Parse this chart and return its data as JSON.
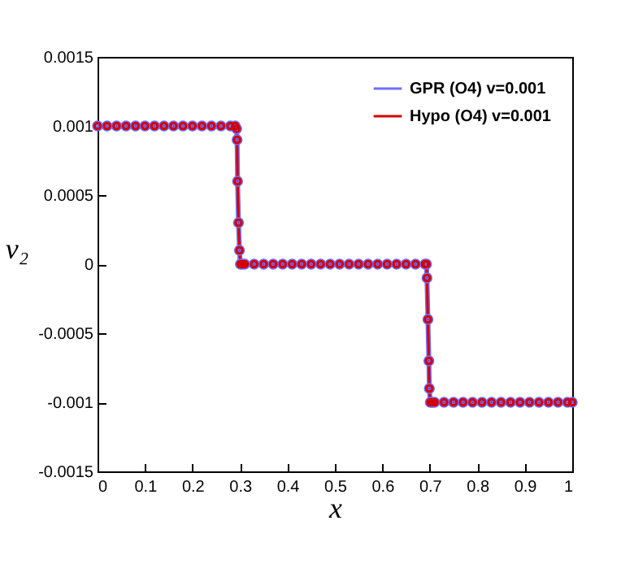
{
  "chart_data": {
    "type": "line",
    "xlabel": "x",
    "ylabel": "v₂",
    "x": [
      0,
      0.02,
      0.04,
      0.06,
      0.08,
      0.1,
      0.12,
      0.14,
      0.16,
      0.18,
      0.2,
      0.22,
      0.24,
      0.26,
      0.28,
      0.29,
      0.293,
      0.294,
      0.295,
      0.297,
      0.299,
      0.301,
      0.305,
      0.31,
      0.33,
      0.35,
      0.37,
      0.39,
      0.41,
      0.43,
      0.45,
      0.47,
      0.49,
      0.51,
      0.53,
      0.55,
      0.57,
      0.59,
      0.61,
      0.63,
      0.65,
      0.67,
      0.69,
      0.693,
      0.694,
      0.696,
      0.698,
      0.699,
      0.701,
      0.705,
      0.71,
      0.73,
      0.75,
      0.77,
      0.79,
      0.81,
      0.83,
      0.85,
      0.87,
      0.89,
      0.91,
      0.93,
      0.95,
      0.97,
      0.99,
      1
    ],
    "series": [
      {
        "name": "GPR (O4)   v=0.001",
        "color": "#6e6eff",
        "values": [
          0.001,
          0.001,
          0.001,
          0.001,
          0.001,
          0.001,
          0.001,
          0.001,
          0.001,
          0.001,
          0.001,
          0.001,
          0.001,
          0.001,
          0.001,
          0.001,
          0.00098,
          0.0009,
          0.0006,
          0.0003,
          0.0001,
          0,
          0,
          0,
          0,
          0,
          0,
          0,
          0,
          0,
          0,
          0,
          0,
          0,
          0,
          0,
          0,
          0,
          0,
          0,
          0,
          0,
          0,
          0,
          -0.0001,
          -0.0004,
          -0.0007,
          -0.0009,
          -0.001,
          -0.001,
          -0.001,
          -0.001,
          -0.001,
          -0.001,
          -0.001,
          -0.001,
          -0.001,
          -0.001,
          -0.001,
          -0.001,
          -0.001,
          -0.001,
          -0.001,
          -0.001,
          -0.001,
          -0.001
        ]
      },
      {
        "name": "Hypo (O4)  v=0.001",
        "color": "#d40000",
        "values": [
          0.001,
          0.001,
          0.001,
          0.001,
          0.001,
          0.001,
          0.001,
          0.001,
          0.001,
          0.001,
          0.001,
          0.001,
          0.001,
          0.001,
          0.001,
          0.001,
          0.00098,
          0.0009,
          0.0006,
          0.0003,
          0.0001,
          0,
          0,
          0,
          0,
          0,
          0,
          0,
          0,
          0,
          0,
          0,
          0,
          0,
          0,
          0,
          0,
          0,
          0,
          0,
          0,
          0,
          0,
          0,
          -0.0001,
          -0.0004,
          -0.0007,
          -0.0009,
          -0.001,
          -0.001,
          -0.001,
          -0.001,
          -0.001,
          -0.001,
          -0.001,
          -0.001,
          -0.001,
          -0.001,
          -0.001,
          -0.001,
          -0.001,
          -0.001,
          -0.001,
          -0.001,
          -0.001,
          -0.001
        ]
      }
    ],
    "xlim": [
      0,
      1
    ],
    "xticks": [
      0,
      0.1,
      0.2,
      0.3,
      0.4,
      0.5,
      0.6,
      0.7,
      0.8,
      0.9,
      1
    ],
    "ylim": [
      -0.0015,
      0.0015
    ],
    "yticks": [
      -0.0015,
      -0.001,
      -0.0005,
      0,
      0.0005,
      0.001,
      0.0015
    ],
    "grid": false,
    "legend": "top right",
    "marker": "circle",
    "line_style": "solid"
  }
}
